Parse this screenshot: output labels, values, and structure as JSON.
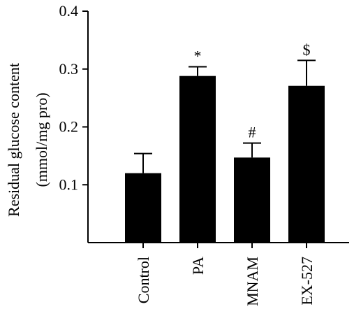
{
  "chart_data": {
    "type": "bar",
    "title": "",
    "ylabel_line1": "Residual glucose content",
    "ylabel_line2": "(mmol/mg pro)",
    "xlabel": "",
    "ylim": [
      0,
      0.4
    ],
    "yticks": [
      0.1,
      0.2,
      0.3,
      0.4
    ],
    "ytick_labels": [
      "0.1",
      "0.2",
      "0.3",
      "0.4"
    ],
    "categories": [
      "Control",
      "PA",
      "MNAM",
      "EX-527"
    ],
    "values": [
      0.12,
      0.288,
      0.147,
      0.271
    ],
    "errors": [
      0.034,
      0.016,
      0.025,
      0.044
    ],
    "annotations": [
      "",
      "*",
      "#",
      "$"
    ],
    "bar_color": "#000000"
  }
}
